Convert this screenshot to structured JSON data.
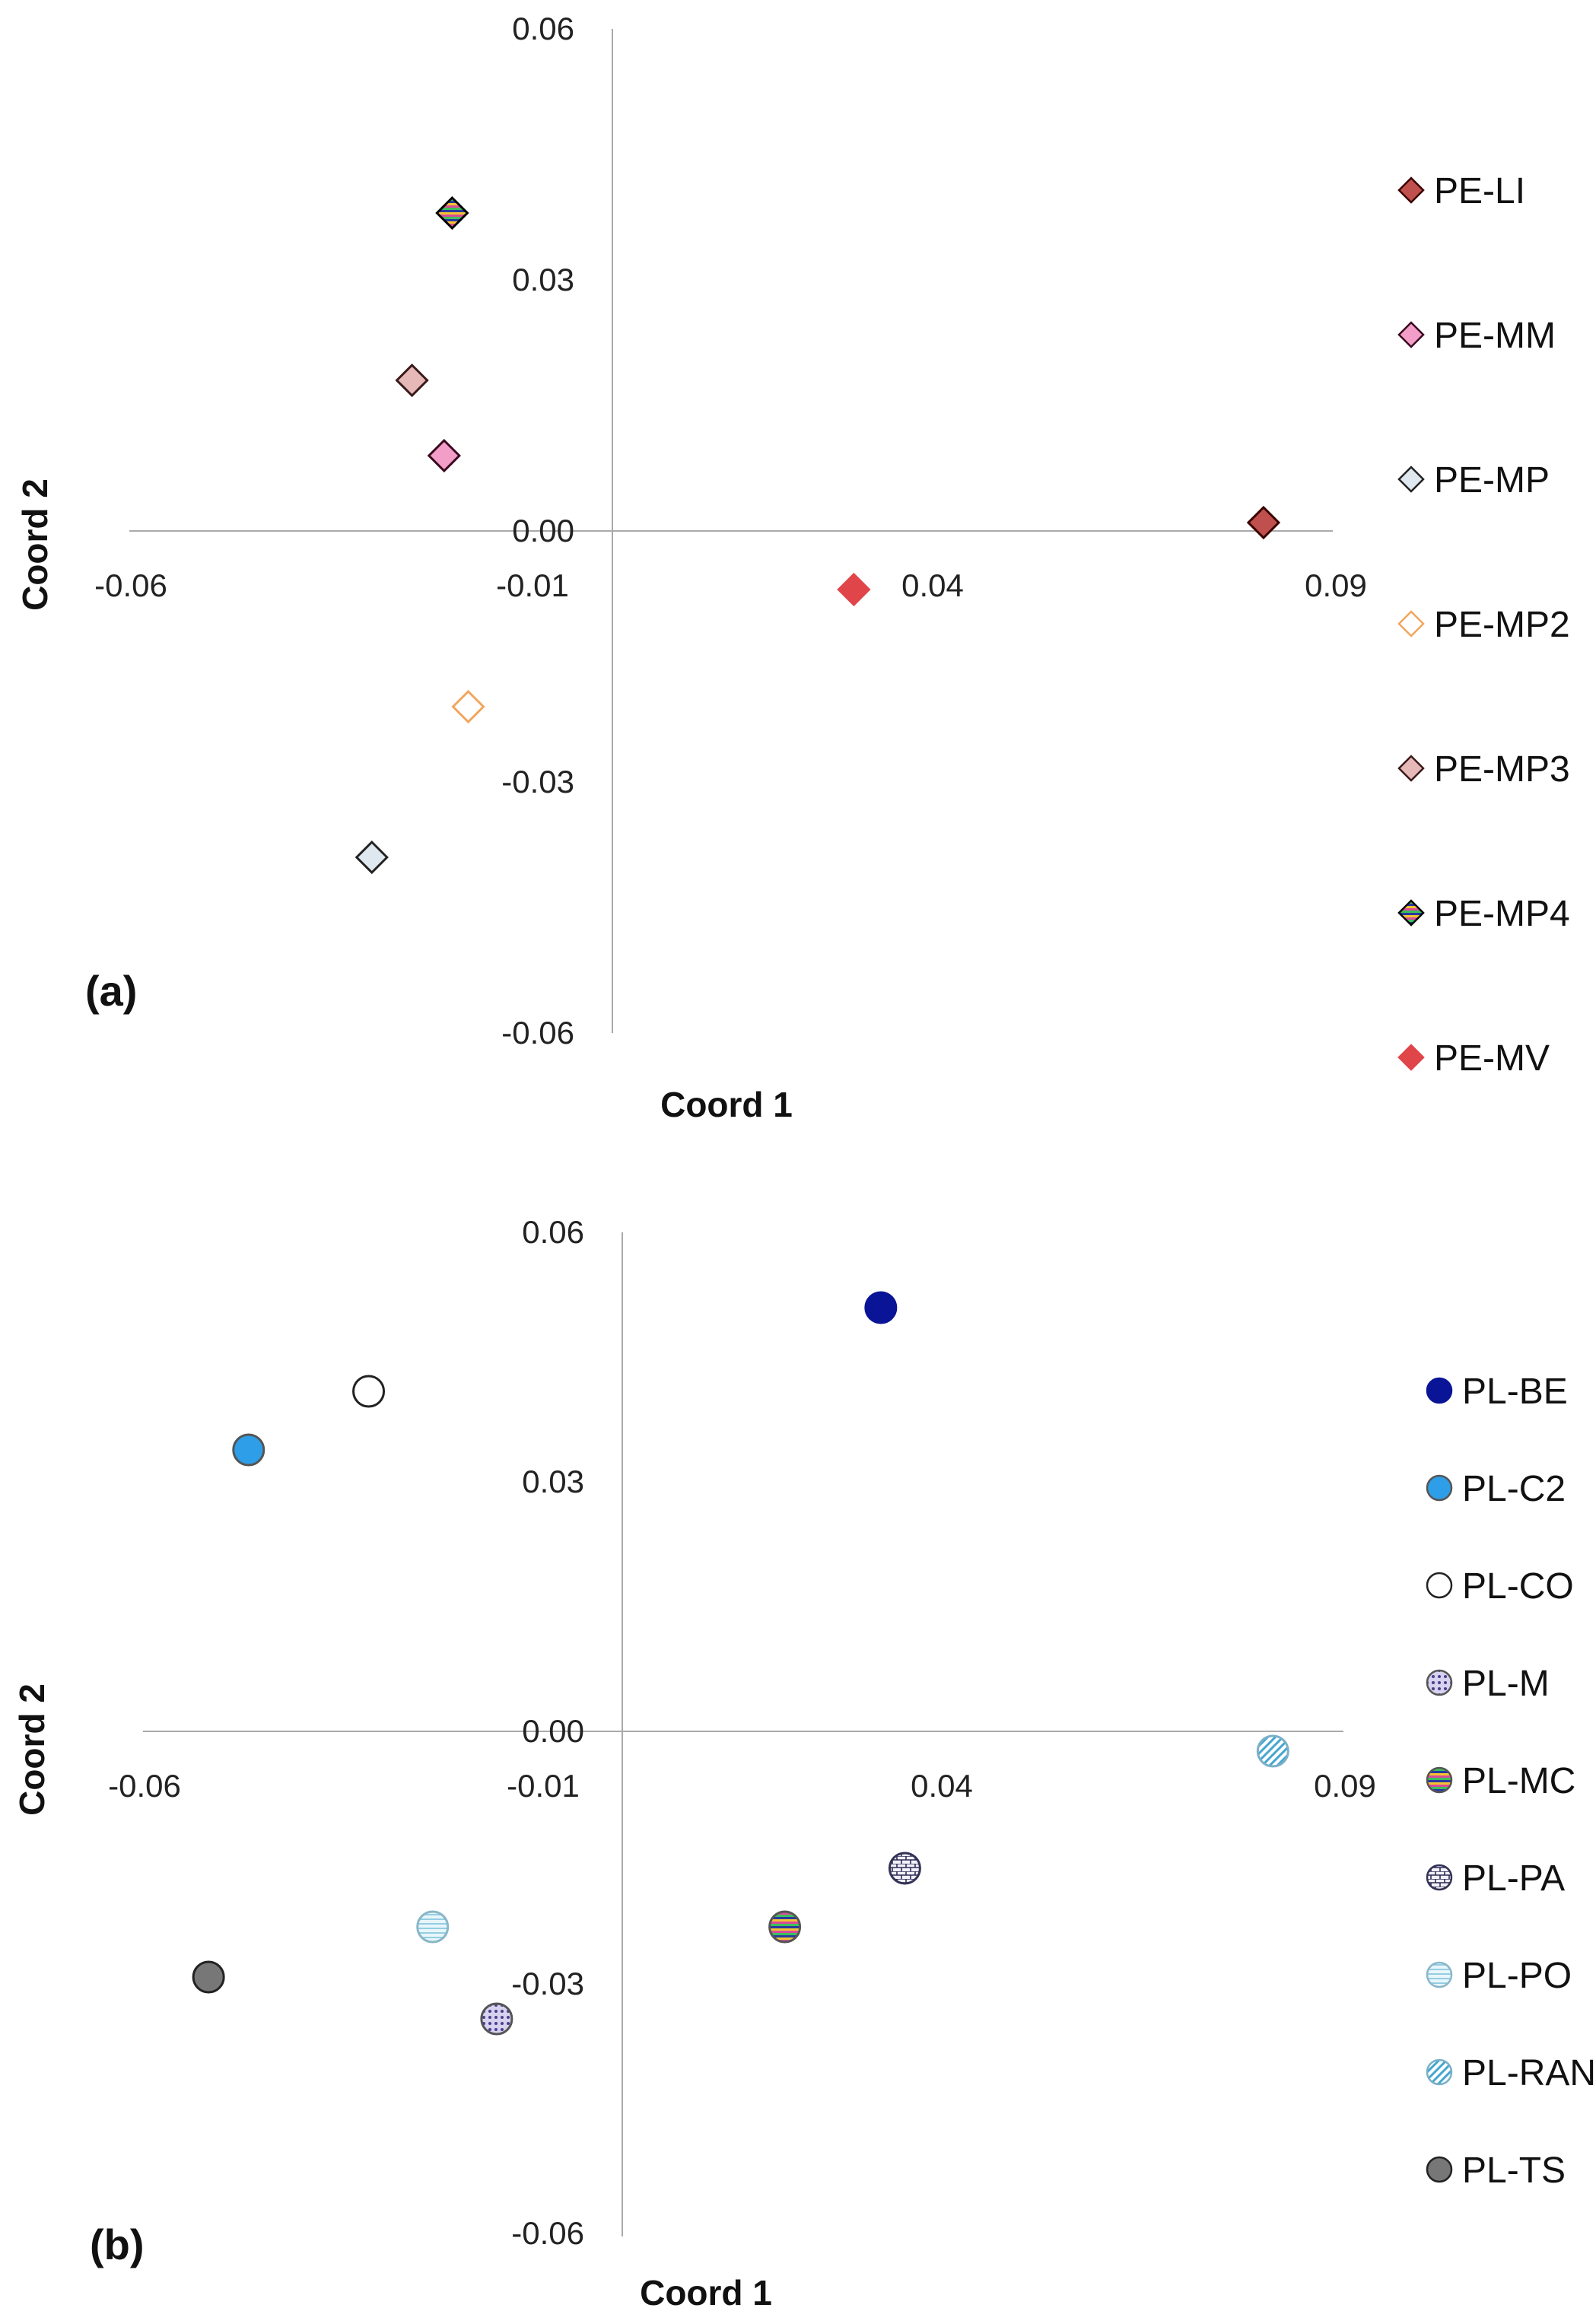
{
  "chart_data": [
    {
      "panel": "(a)",
      "type": "scatter",
      "xlabel": "Coord 1",
      "ylabel": "Coord 2",
      "xlim": [
        -0.06,
        0.09
      ],
      "ylim": [
        -0.06,
        0.06
      ],
      "x_ticks": [
        "-0.06",
        "-0.01",
        "0.04",
        "0.09"
      ],
      "y_ticks": [
        "0.06",
        "0.03",
        "0.00",
        "-0.03",
        "-0.06"
      ],
      "grid": false,
      "legend": "right",
      "marker": "diamond",
      "series": [
        {
          "name": "PE-LI",
          "x": 0.081,
          "y": 0.001,
          "color": "#c0504d",
          "stroke": "#3a0000"
        },
        {
          "name": "PE-MM",
          "x": -0.021,
          "y": 0.009,
          "color": "#f29ec8",
          "stroke": "#3a0a20"
        },
        {
          "name": "PE-MP",
          "x": -0.03,
          "y": -0.039,
          "color": "#dfe8ee",
          "stroke": "#222222"
        },
        {
          "name": "PE-MP2",
          "x": -0.018,
          "y": -0.021,
          "color": "#ffffff",
          "stroke": "#f2a55c"
        },
        {
          "name": "PE-MP3",
          "x": -0.025,
          "y": 0.018,
          "color": "#e6b9b8",
          "stroke": "#3a1a1a"
        },
        {
          "name": "PE-MP4",
          "x": -0.02,
          "y": 0.038,
          "color": "#1f3a93",
          "stroke": "#000000",
          "pattern": "stripes"
        },
        {
          "name": "PE-MV",
          "x": 0.03,
          "y": -0.007,
          "color": "#e0454a",
          "stroke": "#e0454a"
        }
      ]
    },
    {
      "panel": "(b)",
      "type": "scatter",
      "xlabel": "Coord 1",
      "ylabel": "Coord 2",
      "xlim": [
        -0.06,
        0.09
      ],
      "ylim": [
        -0.06,
        0.06
      ],
      "x_ticks": [
        "-0.06",
        "-0.01",
        "0.04",
        "0.09"
      ],
      "y_ticks": [
        "0.06",
        "0.03",
        "0.00",
        "-0.03",
        "-0.06"
      ],
      "grid": false,
      "legend": "right",
      "marker": "circle",
      "series": [
        {
          "name": "PL-BE",
          "x": 0.032,
          "y": 0.051,
          "color": "#0a1496",
          "stroke": "#0a1496"
        },
        {
          "name": "PL-C2",
          "x": -0.047,
          "y": 0.034,
          "color": "#2e9ee8",
          "stroke": "#555555"
        },
        {
          "name": "PL-CO",
          "x": -0.032,
          "y": 0.041,
          "color": "#ffffff",
          "stroke": "#222222"
        },
        {
          "name": "PL-M",
          "x": -0.016,
          "y": -0.034,
          "color": "#b9b4e0",
          "stroke": "#555555",
          "pattern": "dots"
        },
        {
          "name": "PL-MC",
          "x": 0.02,
          "y": -0.023,
          "color": "#1f3a93",
          "stroke": "#555555",
          "pattern": "stripes"
        },
        {
          "name": "PL-PA",
          "x": 0.035,
          "y": -0.016,
          "color": "#e8e6f4",
          "stroke": "#333355",
          "pattern": "bricks"
        },
        {
          "name": "PL-PO",
          "x": -0.024,
          "y": -0.023,
          "color": "#d8eef6",
          "stroke": "#8ab6c8",
          "pattern": "lines"
        },
        {
          "name": "PL-RAN",
          "x": 0.081,
          "y": -0.002,
          "color": "#bfe6f2",
          "stroke": "#7ab0c8",
          "pattern": "diag"
        },
        {
          "name": "PL-TS",
          "x": -0.052,
          "y": -0.029,
          "color": "#777777",
          "stroke": "#222222"
        }
      ]
    }
  ]
}
